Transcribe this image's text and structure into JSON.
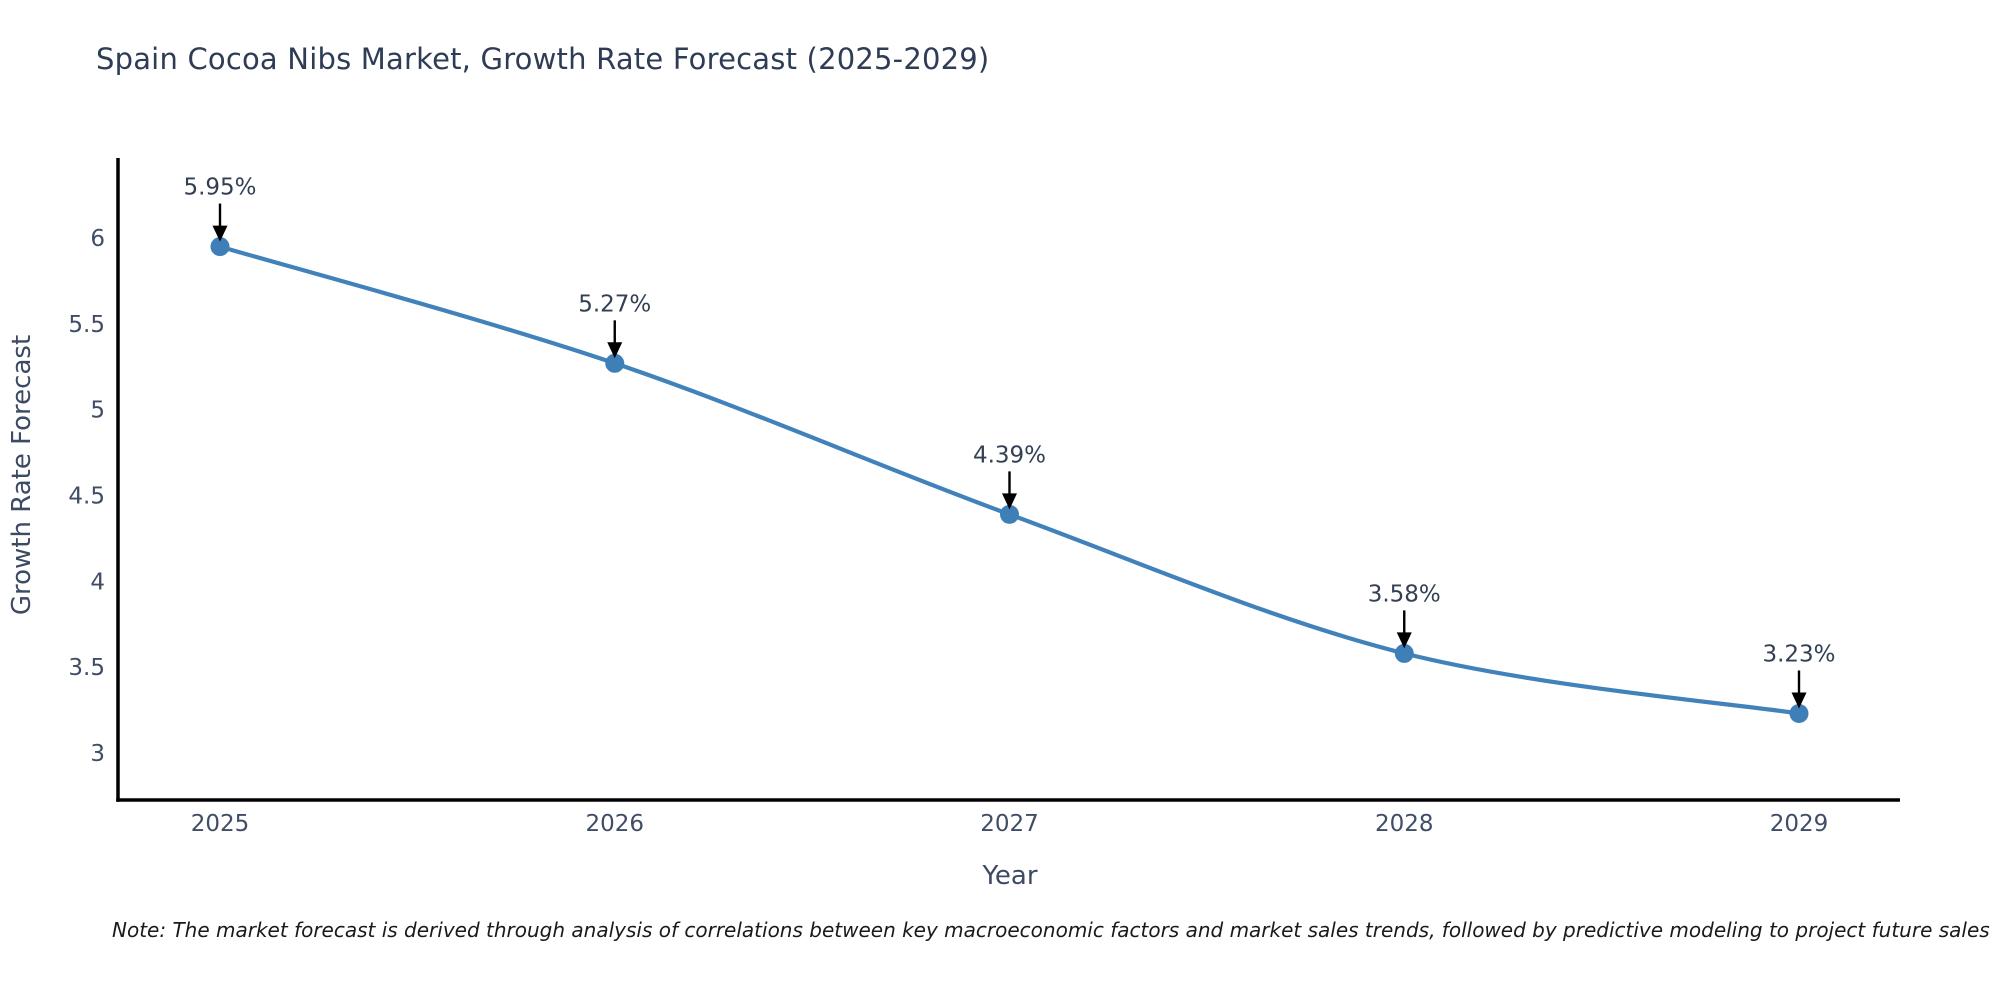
{
  "page": {
    "title": "Spain Cocoa Nibs Market, Growth Rate Forecast (2025-2029)",
    "note": "Note: The market forecast is derived through analysis of correlations between key macroeconomic factors and market sales trends, followed by predictive modeling to project future sales"
  },
  "chart_data": {
    "type": "line",
    "title": "Spain Cocoa Nibs Market, Growth Rate Forecast (2025-2029)",
    "x": [
      2025,
      2026,
      2027,
      2028,
      2029
    ],
    "categories": [
      "2025",
      "2026",
      "2027",
      "2028",
      "2029"
    ],
    "series": [
      {
        "name": "Growth Rate Forecast",
        "values": [
          5.95,
          5.27,
          4.39,
          3.58,
          3.23
        ],
        "point_labels": [
          "5.95%",
          "5.27%",
          "4.39%",
          "3.58%",
          "3.23%"
        ]
      }
    ],
    "xlabel": "Year",
    "ylabel": "Growth Rate Forecast",
    "yticks": [
      3,
      3.5,
      4,
      4.5,
      5,
      5.5,
      6
    ],
    "ylim": [
      2.73,
      6.47
    ],
    "grid": false,
    "legend_position": "none",
    "line_shape": "spline",
    "annotations_have_arrows": true,
    "colors": {
      "line": "#4182ba",
      "marker": "#3f7fb8",
      "arrow": "#000000",
      "title_text": "#2e3c55",
      "axis_title_text": "#3c4a63",
      "tick_text": "#3f4d66",
      "axis_line": "#000000",
      "annotation_text": "#333f52",
      "background": "#ffffff"
    }
  }
}
